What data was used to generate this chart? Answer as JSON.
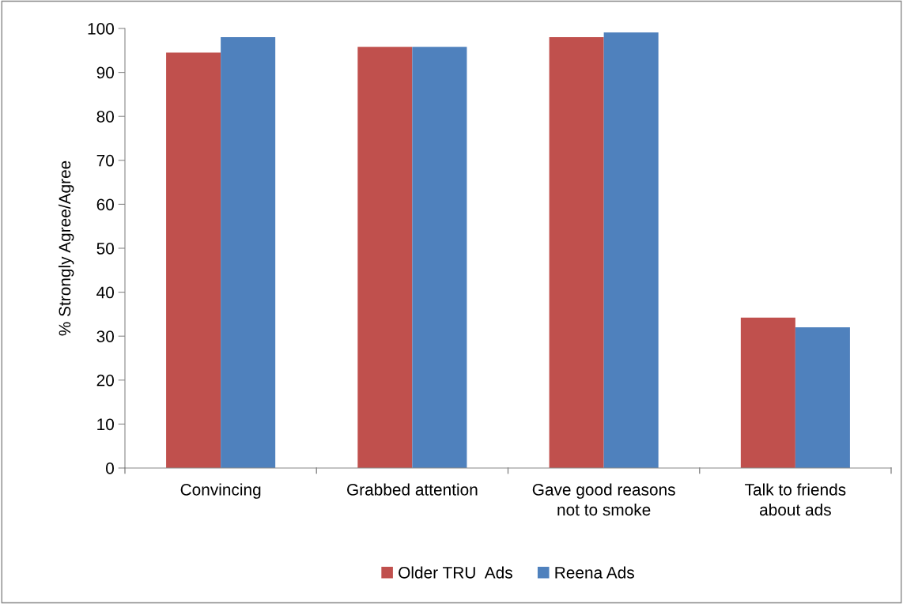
{
  "chart_data": {
    "type": "bar",
    "ylabel": "% Strongly Agree/Agree",
    "categories": [
      "Convincing",
      "Grabbed attention",
      "Gave good reasons\nnot to smoke",
      "Talk to friends\nabout ads"
    ],
    "series": [
      {
        "name": "Older TRU  Ads",
        "color": "#c0504d",
        "values": [
          94.5,
          95.8,
          98,
          34.2
        ]
      },
      {
        "name": "Reena Ads",
        "color": "#4f81bd",
        "values": [
          98,
          95.8,
          99.1,
          32
        ]
      }
    ],
    "ylim": [
      0,
      100
    ],
    "yticks": [
      0,
      10,
      20,
      30,
      40,
      50,
      60,
      70,
      80,
      90,
      100
    ],
    "grid": false,
    "legend": "bottom"
  }
}
